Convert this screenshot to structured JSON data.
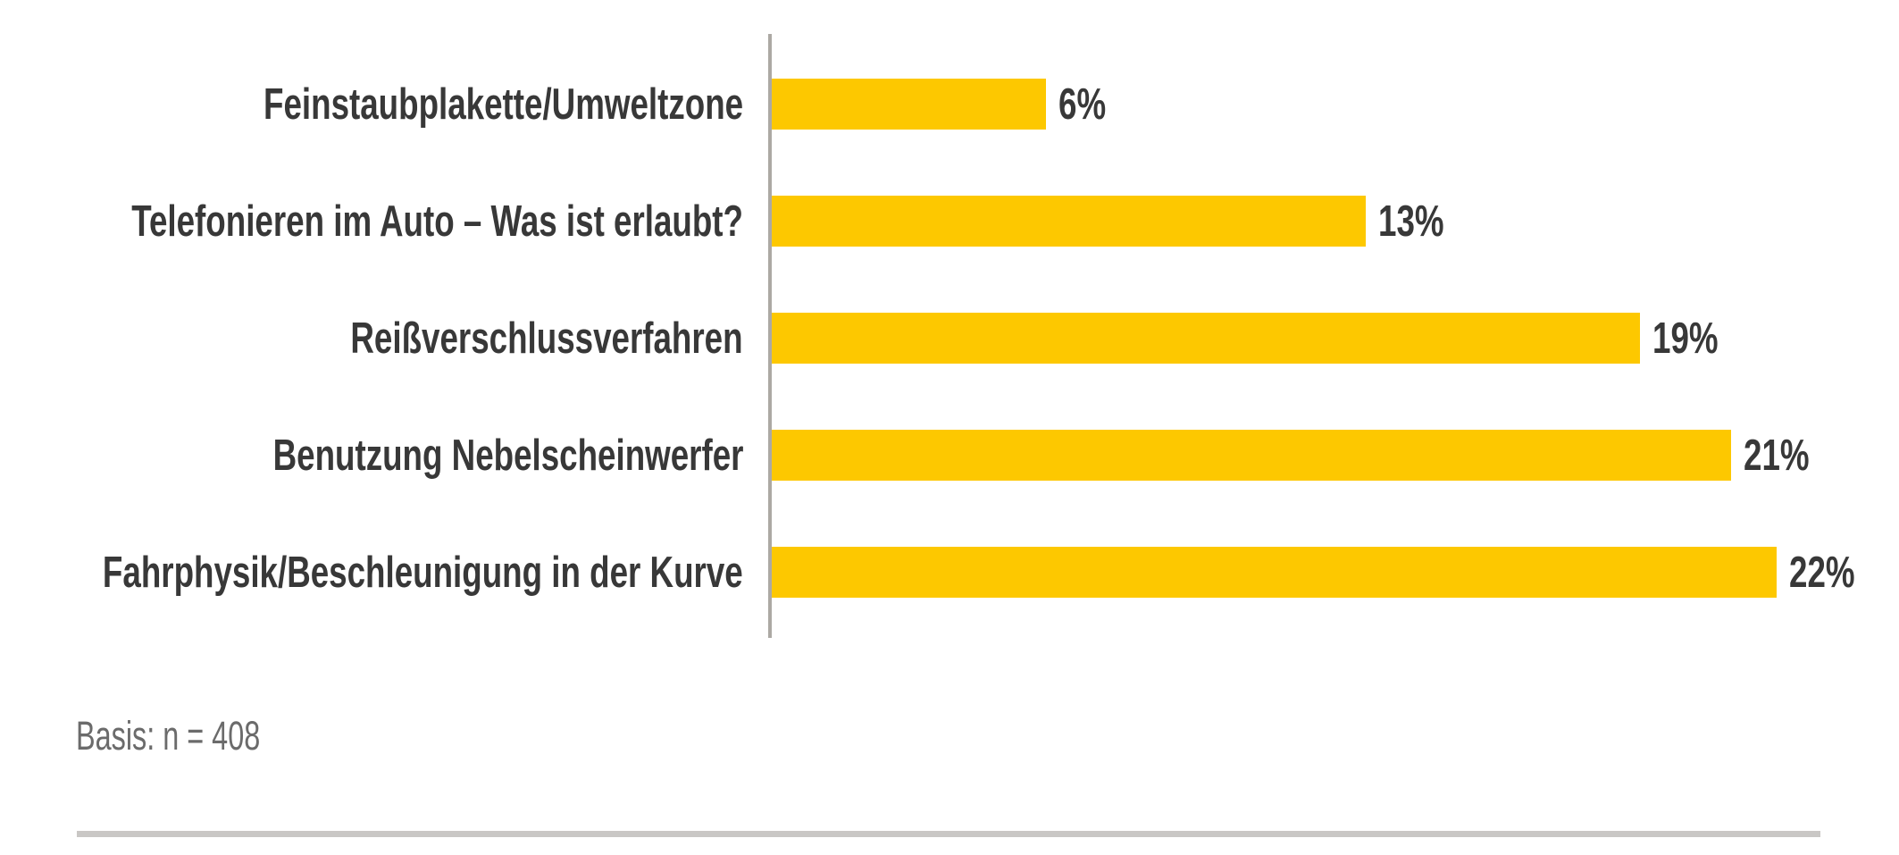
{
  "chart_data": {
    "type": "bar",
    "orientation": "horizontal",
    "title": "",
    "xlabel": "",
    "ylabel": "",
    "categories": [
      "Feinstaubplakette/Umweltzone",
      "Telefonieren im Auto – Was ist erlaubt?",
      "Reißverschlussverfahren",
      "Benutzung Nebelscheinwerfer",
      "Fahrphysik/Beschleunigung in der Kurve"
    ],
    "values": [
      6,
      13,
      19,
      21,
      22
    ],
    "value_labels": [
      "6%",
      "13%",
      "19%",
      "21%",
      "22%"
    ],
    "xlim": [
      0,
      22
    ],
    "grid": false,
    "legend": false,
    "bar_color": "#FDC800",
    "category_label_color": "#383838",
    "value_label_color": "#383838",
    "axis_line_color": "#ACA9A4"
  },
  "footer": {
    "basis_label": "Basis: n = 408",
    "divider_color": "#C9C7C5"
  }
}
